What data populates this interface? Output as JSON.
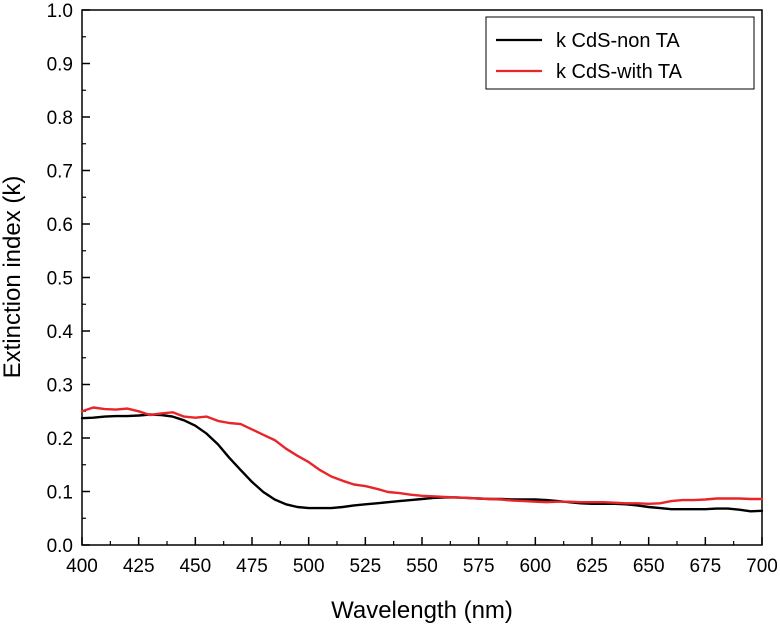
{
  "chart_data": {
    "type": "line",
    "title": "",
    "xlabel": "Wavelength (nm)",
    "ylabel": "Extinction index (k)",
    "xlim": [
      400,
      700
    ],
    "ylim": [
      0.0,
      1.0
    ],
    "x_ticks": [
      "400",
      "425",
      "450",
      "475",
      "500",
      "525",
      "550",
      "575",
      "600",
      "625",
      "650",
      "675",
      "700"
    ],
    "y_ticks": [
      "0.0",
      "0.1",
      "0.2",
      "0.3",
      "0.4",
      "0.5",
      "0.6",
      "0.7",
      "0.8",
      "0.9",
      "1.0"
    ],
    "grid": false,
    "legend_position": "top-right",
    "series": [
      {
        "name": "k CdS-non TA",
        "color": "#000000",
        "x": [
          400,
          405,
          410,
          415,
          420,
          425,
          430,
          435,
          440,
          445,
          450,
          455,
          460,
          465,
          470,
          475,
          480,
          485,
          490,
          495,
          500,
          505,
          510,
          515,
          520,
          525,
          530,
          535,
          540,
          545,
          550,
          555,
          560,
          565,
          570,
          575,
          580,
          585,
          590,
          595,
          600,
          605,
          610,
          615,
          620,
          625,
          630,
          635,
          640,
          645,
          650,
          655,
          660,
          665,
          670,
          675,
          680,
          685,
          690,
          695,
          700
        ],
        "y": [
          0.237,
          0.238,
          0.24,
          0.241,
          0.241,
          0.242,
          0.244,
          0.243,
          0.24,
          0.233,
          0.223,
          0.208,
          0.188,
          0.163,
          0.14,
          0.118,
          0.099,
          0.085,
          0.076,
          0.071,
          0.069,
          0.069,
          0.069,
          0.071,
          0.074,
          0.076,
          0.078,
          0.08,
          0.082,
          0.084,
          0.086,
          0.088,
          0.089,
          0.089,
          0.088,
          0.087,
          0.086,
          0.086,
          0.085,
          0.085,
          0.085,
          0.084,
          0.082,
          0.08,
          0.078,
          0.077,
          0.077,
          0.077,
          0.076,
          0.074,
          0.071,
          0.069,
          0.067,
          0.067,
          0.067,
          0.067,
          0.068,
          0.068,
          0.066,
          0.063,
          0.064
        ]
      },
      {
        "name": "k CdS-with TA",
        "color": "#e8262a",
        "x": [
          400,
          405,
          410,
          415,
          420,
          425,
          430,
          435,
          440,
          445,
          450,
          455,
          460,
          465,
          470,
          475,
          480,
          485,
          490,
          495,
          500,
          505,
          510,
          515,
          520,
          525,
          530,
          535,
          540,
          545,
          550,
          555,
          560,
          565,
          570,
          575,
          580,
          585,
          590,
          595,
          600,
          605,
          610,
          615,
          620,
          625,
          630,
          635,
          640,
          645,
          650,
          655,
          660,
          665,
          670,
          675,
          680,
          685,
          690,
          695,
          700
        ],
        "y": [
          0.25,
          0.257,
          0.254,
          0.253,
          0.255,
          0.25,
          0.243,
          0.246,
          0.248,
          0.24,
          0.238,
          0.24,
          0.232,
          0.228,
          0.226,
          0.216,
          0.206,
          0.196,
          0.18,
          0.167,
          0.155,
          0.14,
          0.128,
          0.12,
          0.113,
          0.11,
          0.105,
          0.099,
          0.097,
          0.094,
          0.092,
          0.091,
          0.09,
          0.089,
          0.088,
          0.087,
          0.086,
          0.085,
          0.083,
          0.082,
          0.081,
          0.08,
          0.081,
          0.081,
          0.08,
          0.08,
          0.08,
          0.079,
          0.078,
          0.078,
          0.077,
          0.078,
          0.082,
          0.084,
          0.084,
          0.085,
          0.087,
          0.087,
          0.087,
          0.086,
          0.086
        ]
      }
    ]
  }
}
